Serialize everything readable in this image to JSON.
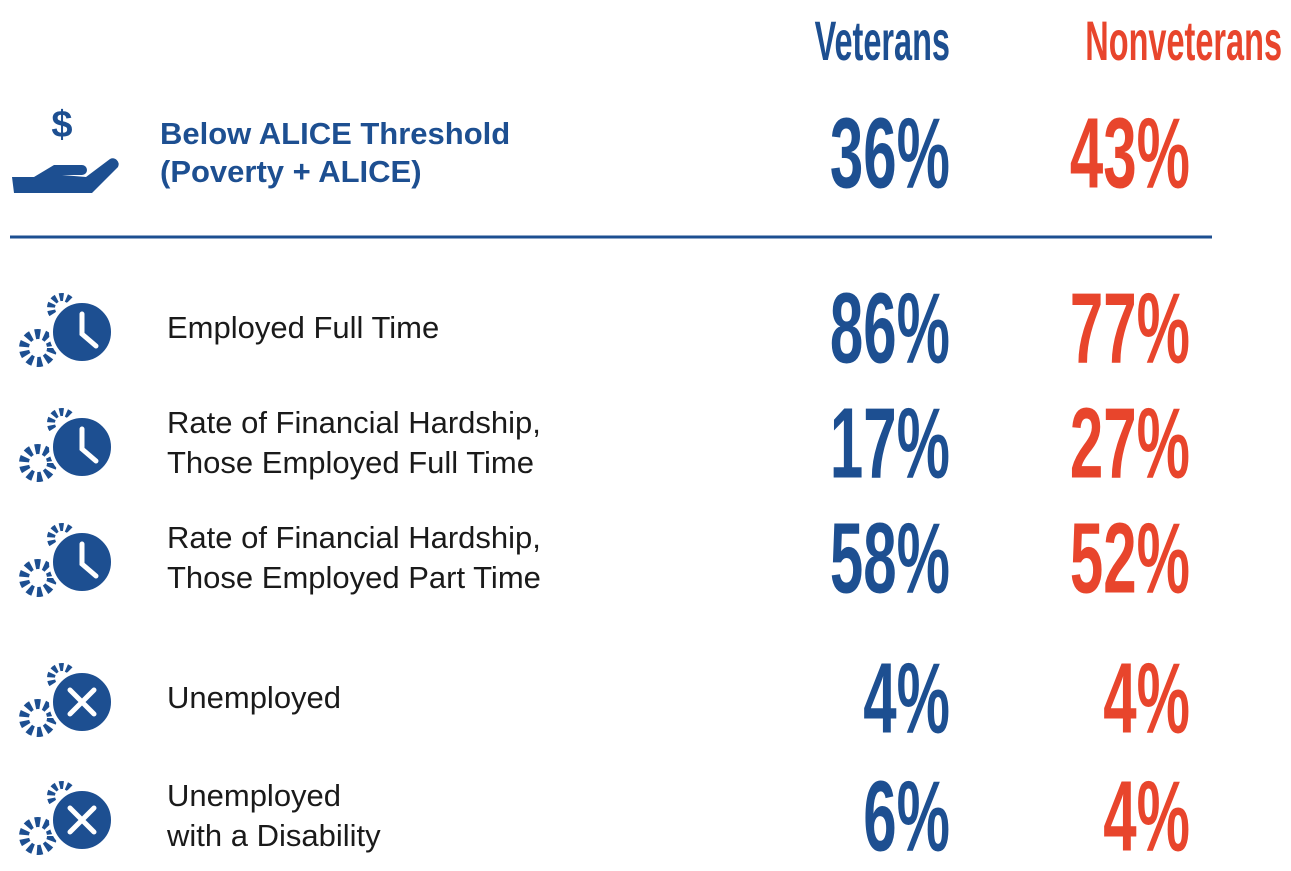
{
  "header": {
    "columns": [
      "Veterans",
      "Nonveterans"
    ]
  },
  "rows": [
    {
      "label": [
        "Below ALICE Threshold",
        "(Poverty + ALICE)"
      ],
      "values": [
        "36%",
        "43%"
      ]
    },
    {
      "label": [
        "Employed Full Time"
      ],
      "values": [
        "86%",
        "77%"
      ]
    },
    {
      "label": [
        "Rate of Financial Hardship,",
        "Those Employed Full Time"
      ],
      "values": [
        "17%",
        "27%"
      ]
    },
    {
      "label": [
        "Rate of Financial Hardship,",
        "Those Employed Part Time"
      ],
      "values": [
        "58%",
        "52%"
      ]
    },
    {
      "label": [
        "Unemployed"
      ],
      "values": [
        "4%",
        "4%"
      ]
    },
    {
      "label": [
        "Unemployed",
        "with a Disability"
      ],
      "values": [
        "6%",
        "4%"
      ]
    }
  ]
}
